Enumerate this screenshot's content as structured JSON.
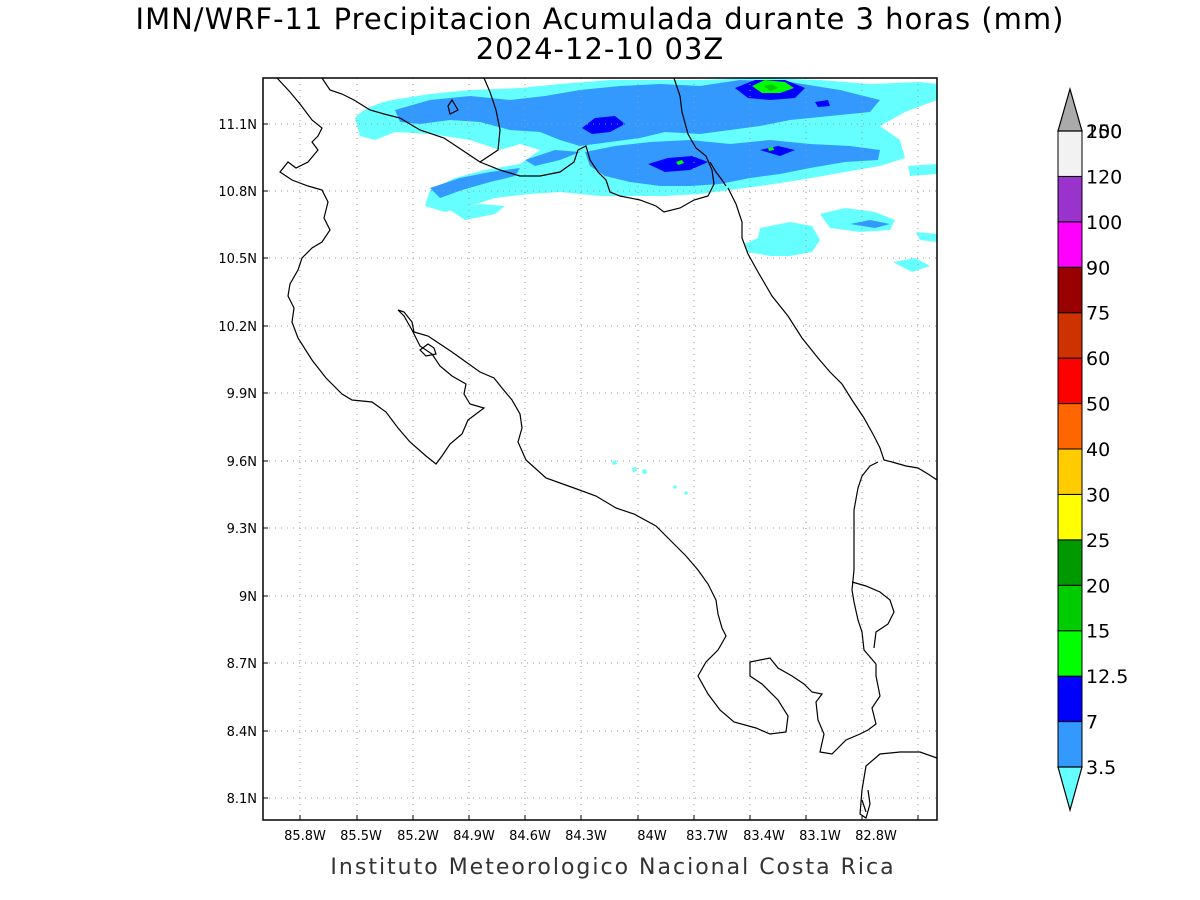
{
  "title": {
    "line1": "IMN/WRF-11 Precipitacion Acumulada durante 3 horas (mm)",
    "line2": "2024-12-10 03Z"
  },
  "footer": "Instituto Meteorologico Nacional Costa Rica",
  "axes": {
    "lon_ticks": [
      "85.8W",
      "85.5W",
      "85.2W",
      "84.9W",
      "84.6W",
      "84.3W",
      "84W",
      "83.7W",
      "83.4W",
      "83.1W",
      "82.8W"
    ],
    "lat_ticks": [
      "11.1N",
      "10.8N",
      "10.5N",
      "10.2N",
      "9.9N",
      "9.6N",
      "9.3N",
      "9N",
      "8.7N",
      "8.4N",
      "8.1N"
    ],
    "grid": "dotted"
  },
  "colorbar": {
    "levels": [
      {
        "label": "3.5",
        "color": "#66ffff"
      },
      {
        "label": "7",
        "color": "#3399ff"
      },
      {
        "label": "12.5",
        "color": "#0000ff"
      },
      {
        "label": "15",
        "color": "#00ff00"
      },
      {
        "label": "20",
        "color": "#00cc00"
      },
      {
        "label": "25",
        "color": "#009900"
      },
      {
        "label": "30",
        "color": "#ffff00"
      },
      {
        "label": "40",
        "color": "#ffcc00"
      },
      {
        "label": "50",
        "color": "#ff6600"
      },
      {
        "label": "60",
        "color": "#ff0000"
      },
      {
        "label": "75",
        "color": "#cc3300"
      },
      {
        "label": "90",
        "color": "#990000"
      },
      {
        "label": "100",
        "color": "#ff00ff"
      },
      {
        "label": "120",
        "color": "#9933cc"
      },
      {
        "label": "150",
        "color": "#f2f2f2"
      },
      {
        "label": "200",
        "color": "#aaaaaa"
      }
    ]
  },
  "precip_colors": {
    "light": "#66ffff",
    "moderate": "#3399ff",
    "heavy": "#0000ff",
    "very_heavy": "#00ff00",
    "extreme": "#00cc00"
  }
}
